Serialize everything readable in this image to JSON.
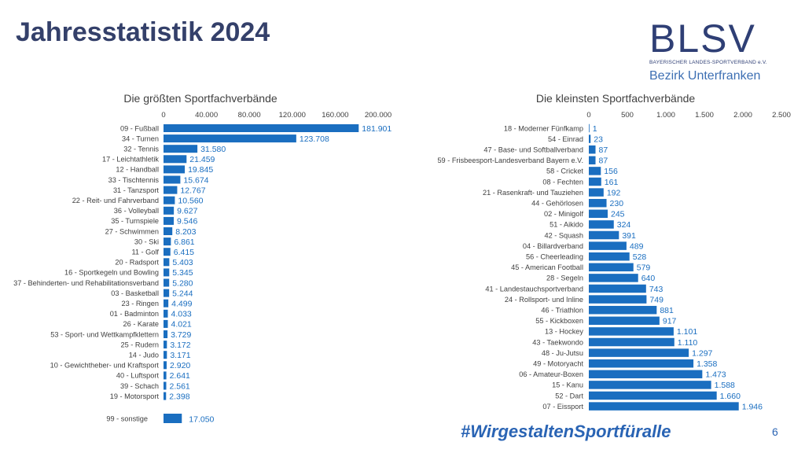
{
  "page": {
    "title": "Jahresstatistik 2024",
    "page_number": "6",
    "hashtag": "#WirgestaltenSportfüralle"
  },
  "logo": {
    "letters": "BLSV",
    "subtitle": "BAYERISCHER LANDES-SPORTVERBAND e.V.",
    "region_prefix": "Bezirk ",
    "region_name": "Unterfranken",
    "colors": {
      "dark": "#2f3f75",
      "light": "#3d6fb3"
    }
  },
  "colors": {
    "bar": "#1a6ec0",
    "label": "#1a6ec0",
    "category": "#404040",
    "title": "#34406a"
  },
  "chart_data": [
    {
      "type": "bar",
      "orientation": "horizontal",
      "title": "Die größten Sportfachverbände",
      "xlim": [
        0,
        200000
      ],
      "ticks": [
        0,
        40000,
        80000,
        120000,
        160000,
        200000
      ],
      "tick_labels": [
        "0",
        "40.000",
        "80.000",
        "120.000",
        "160.000",
        "200.000"
      ],
      "axis_position": "top",
      "categories": [
        "09 - Fußball",
        "34 - Turnen",
        "32 - Tennis",
        "17 - Leichtathletik",
        "12 - Handball",
        "33 - Tischtennis",
        "31 - Tanzsport",
        "22 - Reit- und Fahrverband",
        "36 - Volleyball",
        "35 - Turnspiele",
        "27 - Schwimmen",
        "30 - Ski",
        "11 - Golf",
        "20 - Radsport",
        "16 - Sportkegeln und Bowling",
        "37 - Behinderten- und Rehabilitationsverband",
        "03 - Basketball",
        "23 - Ringen",
        "01 - Badminton",
        "26 - Karate",
        "53 - Sport- und Wettkampfklettern",
        "25 - Rudern",
        "14 - Judo",
        "10 - Gewichtheber- und Kraftsport",
        "40 - Luftsport",
        "39 - Schach",
        "19 - Motorsport"
      ],
      "values": [
        181901,
        123708,
        31580,
        21459,
        19845,
        15674,
        12767,
        10560,
        9627,
        9546,
        8203,
        6861,
        6415,
        5403,
        5345,
        5280,
        5244,
        4499,
        4033,
        4021,
        3729,
        3172,
        3171,
        2920,
        2641,
        2561,
        2398
      ],
      "value_labels": [
        "181.901",
        "123.708",
        "31.580",
        "21.459",
        "19.845",
        "15.674",
        "12.767",
        "10.560",
        "9.627",
        "9.546",
        "8.203",
        "6.861",
        "6.415",
        "5.403",
        "5.345",
        "5.280",
        "5.244",
        "4.499",
        "4.033",
        "4.021",
        "3.729",
        "3.172",
        "3.171",
        "2.920",
        "2.641",
        "2.561",
        "2.398"
      ],
      "extra": {
        "category": "99 - sonstige",
        "value": 17050,
        "value_label": "17.050"
      }
    },
    {
      "type": "bar",
      "orientation": "horizontal",
      "title": "Die kleinsten Sportfachverbände",
      "xlim": [
        0,
        2500
      ],
      "ticks": [
        0,
        500,
        1000,
        1500,
        2000,
        2500
      ],
      "tick_labels": [
        "0",
        "500",
        "1.000",
        "1.500",
        "2.000",
        "2.500"
      ],
      "axis_position": "top",
      "categories": [
        "18 - Moderner Fünfkamp",
        "54 - Einrad",
        "47 - Base- und Softballverband",
        "59 - Frisbeesport-Landesverband Bayern e.V.",
        "58 - Cricket",
        "08 - Fechten",
        "21 - Rasenkraft- und Tauziehen",
        "44 - Gehörlosen",
        "02 - Minigolf",
        "51 - Aikido",
        "42 - Squash",
        "04 - Billardverband",
        "56 - Cheerleading",
        "45 - American Football",
        "28 - Segeln",
        "41 - Landestauchsportverband",
        "24 - Rollsport- und Inline",
        "46 - Triathlon",
        "55 - Kickboxen",
        "13 - Hockey",
        "43 - Taekwondo",
        "48 - Ju-Jutsu",
        "49 - Motoryacht",
        "06 - Amateur-Boxen",
        "15 - Kanu",
        "52 - Dart",
        "07 - Eissport"
      ],
      "values": [
        1,
        23,
        87,
        87,
        156,
        161,
        192,
        230,
        245,
        324,
        391,
        489,
        528,
        579,
        640,
        743,
        749,
        881,
        917,
        1101,
        1110,
        1297,
        1358,
        1473,
        1588,
        1660,
        1946
      ],
      "value_labels": [
        "1",
        "23",
        "87",
        "87",
        "156",
        "161",
        "192",
        "230",
        "245",
        "324",
        "391",
        "489",
        "528",
        "579",
        "640",
        "743",
        "749",
        "881",
        "917",
        "1.101",
        "1.110",
        "1.297",
        "1.358",
        "1.473",
        "1.588",
        "1.660",
        "1.946"
      ]
    }
  ]
}
